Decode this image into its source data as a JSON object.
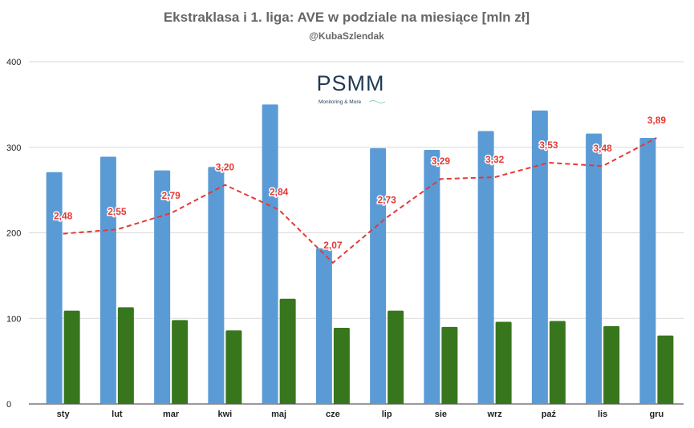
{
  "chart_data": {
    "type": "bar",
    "title": "Ekstraklasa i 1. liga: AVE w podziale na miesiące [mln zł]",
    "subtitle": "@KubaSzlendak",
    "categories": [
      "sty",
      "lut",
      "mar",
      "kwi",
      "maj",
      "cze",
      "lip",
      "sie",
      "wrz",
      "paź",
      "lis",
      "gru"
    ],
    "ylim": [
      0,
      400
    ],
    "yticks": [
      0,
      100,
      200,
      300,
      400
    ],
    "grid": true,
    "series": [
      {
        "type": "bar",
        "color": "#5b9bd5",
        "values": [
          271,
          289,
          273,
          277,
          350,
          182,
          299,
          297,
          319,
          343,
          316,
          311
        ]
      },
      {
        "type": "bar",
        "color": "#38761d",
        "values": [
          109,
          113,
          98,
          86,
          123,
          89,
          109,
          90,
          96,
          97,
          91,
          80
        ]
      },
      {
        "type": "line",
        "style": "dashed",
        "color": "#e53935",
        "values": [
          199,
          204,
          223,
          256,
          227,
          165,
          218,
          263,
          265,
          282,
          278,
          311
        ],
        "labels": [
          "2,48",
          "2,55",
          "2,79",
          "3,20",
          "2,84",
          "2,07",
          "2,73",
          "3,29",
          "3,32",
          "3,53",
          "3,48",
          "3,89"
        ]
      }
    ]
  },
  "logo": {
    "name": "PSMM",
    "tagline": "Monitoring & More"
  }
}
